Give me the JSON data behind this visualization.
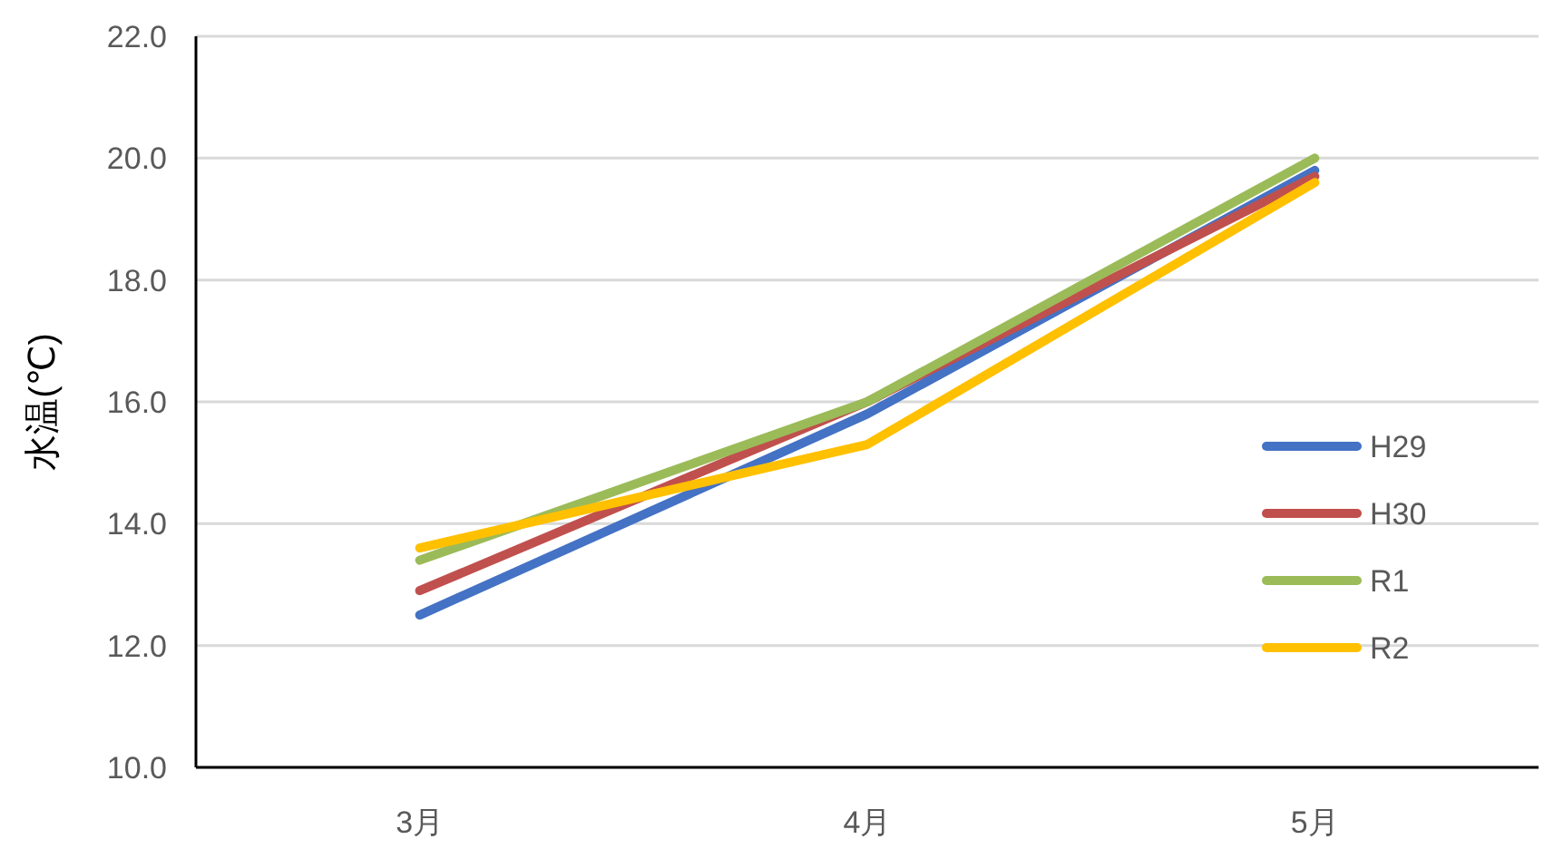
{
  "chart_data": {
    "type": "line",
    "ylabel": "水温(℃)",
    "categories": [
      "3月",
      "4月",
      "5月"
    ],
    "series": [
      {
        "name": "H29",
        "color": "#4472c4",
        "values": [
          12.5,
          15.8,
          19.8
        ]
      },
      {
        "name": "H30",
        "color": "#c0504d",
        "values": [
          12.9,
          16.0,
          19.7
        ]
      },
      {
        "name": "R1",
        "color": "#9bbb59",
        "values": [
          13.4,
          16.0,
          20.0
        ]
      },
      {
        "name": "R2",
        "color": "#ffc000",
        "values": [
          13.6,
          15.3,
          19.6
        ]
      }
    ],
    "ylim": [
      10,
      22
    ],
    "yticks": [
      {
        "value": 10,
        "label": "10.0"
      },
      {
        "value": 12,
        "label": "12.0"
      },
      {
        "value": 14,
        "label": "14.0"
      },
      {
        "value": 16,
        "label": "16.0"
      },
      {
        "value": 18,
        "label": "18.0"
      },
      {
        "value": 20,
        "label": "20.0"
      },
      {
        "value": 22,
        "label": "22.0"
      }
    ],
    "grid": "y",
    "legend": "right",
    "marker": "none",
    "line_style": "solid"
  }
}
